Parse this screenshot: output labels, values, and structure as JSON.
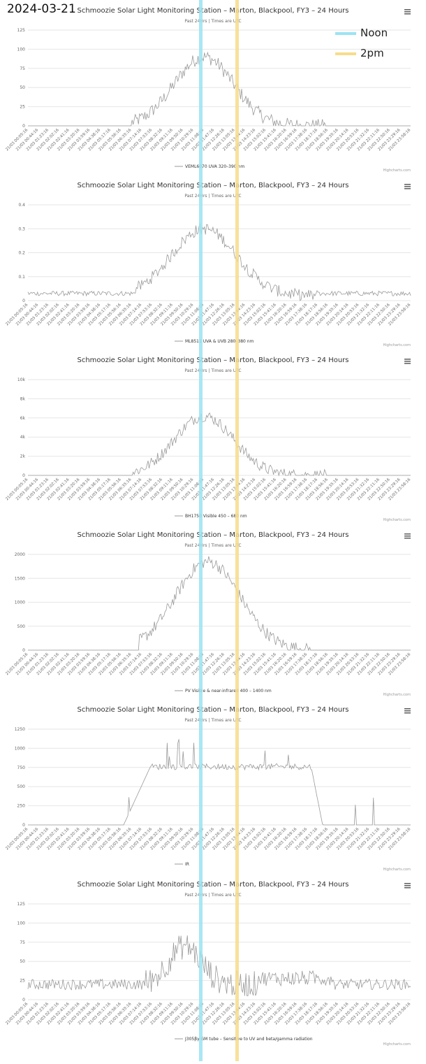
{
  "date": "2024-03-21",
  "overlay_legend": [
    {
      "label": "Noon",
      "color": "#9be3f2"
    },
    {
      "label": "2pm",
      "color": "#f7dc8a"
    }
  ],
  "colors": {
    "series": "#9a9a9a",
    "grid": "#e6e6e6",
    "text": "#333333",
    "axis_text": "#666666"
  },
  "chart_data": [
    {
      "type": "line",
      "title": "Schmoozie Solar Light Monitoring Station – Marton, Blackpool, FY3 – 24 Hours",
      "subtitle": "Past 24Hrs | Times are UTC",
      "series_name": "VEML6070 UVA 320–390 nm",
      "y_ticks": [
        "0",
        "25",
        "50",
        "75",
        "100",
        "125"
      ],
      "ylim": [
        0,
        125
      ],
      "credit": "Highcharts.com",
      "profile": "uva"
    },
    {
      "type": "line",
      "title": "Schmoozie Solar Light Monitoring Station – Marton, Blackpool, FY3 – 24 Hours",
      "subtitle": "Past 24Hrs | Times are UTC",
      "series_name": "ML8511 UVA & UVB 280–380 nm",
      "y_ticks": [
        "0",
        "0.1",
        "0.2",
        "0.3",
        "0.4"
      ],
      "ylim": [
        0,
        0.4
      ],
      "credit": "Highcharts.com",
      "profile": "uvab"
    },
    {
      "type": "line",
      "title": "Schmoozie Solar Light Monitoring Station – Marton, Blackpool, FY3 – 24 Hours",
      "subtitle": "Past 24Hrs | Times are UTC",
      "series_name": "BH1750 Visible 450 – 680 nm",
      "y_ticks": [
        "0",
        "2k",
        "4k",
        "6k",
        "8k",
        "10k"
      ],
      "ylim": [
        0,
        10000
      ],
      "credit": "Highcharts.com",
      "profile": "visible"
    },
    {
      "type": "line",
      "title": "Schmoozie Solar Light Monitoring Station – Marton, Blackpool, FY3 – 24 Hours",
      "subtitle": "Past 24Hrs | Times are UTC",
      "series_name": "PV Visible & near-infrared 400 – 1400 nm",
      "y_ticks": [
        "0",
        "500",
        "1000",
        "1500",
        "2000"
      ],
      "ylim": [
        0,
        2000
      ],
      "credit": "Highcharts.com",
      "profile": "pv"
    },
    {
      "type": "line",
      "title": "Schmoozie Solar Light Monitoring Station – Marton, Blackpool, FY3 – 24 Hours",
      "subtitle": "Past 24Hrs | Times are UTC",
      "series_name": "IR",
      "y_ticks": [
        "0",
        "250",
        "500",
        "750",
        "1000",
        "1250"
      ],
      "ylim": [
        0,
        1250
      ],
      "credit": "Highcharts.com",
      "profile": "ir"
    },
    {
      "type": "line",
      "title": "Schmoozie Solar Light Monitoring Station – Marton, Blackpool, FY3 – 24 Hours",
      "subtitle": "Past 24Hrs | Times are UTC",
      "series_name": "J305βγ GM tube – Sensitive to UV and beta/gamma radiation",
      "y_ticks": [
        "0",
        "25",
        "50",
        "75",
        "100",
        "125"
      ],
      "ylim": [
        0,
        125
      ],
      "credit": "Highcharts.com",
      "profile": "gm"
    }
  ],
  "x_tick_labels": [
    "21/03 00:05:16",
    "21/03 00:44:16",
    "21/03 01:23:16",
    "21/03 02:02:16",
    "21/03 02:41:16",
    "21/03 03:20:16",
    "21/03 03:59:16",
    "21/03 04:38:16",
    "21/03 05:17:16",
    "21/03 05:56:16",
    "21/03 06:35:16",
    "21/03 07:14:16",
    "21/03 07:53:16",
    "21/03 08:32:16",
    "21/03 09:11:16",
    "21/03 09:50:16",
    "21/03 10:29:16",
    "21/03 11:08:16",
    "21/03 11:47:16",
    "21/03 12:26:16",
    "21/03 13:05:16",
    "21/03 13:44:16",
    "21/03 14:23:16",
    "21/03 15:02:16",
    "21/03 15:41:16",
    "21/03 16:20:16",
    "21/03 16:59:16",
    "21/03 17:38:16",
    "21/03 18:17:16",
    "21/03 18:56:16",
    "21/03 19:35:16",
    "21/03 20:14:16",
    "21/03 20:53:16",
    "21/03 21:32:16",
    "21/03 22:11:16",
    "21/03 22:50:16",
    "21/03 23:29:16",
    "21/03 23:58:16"
  ]
}
